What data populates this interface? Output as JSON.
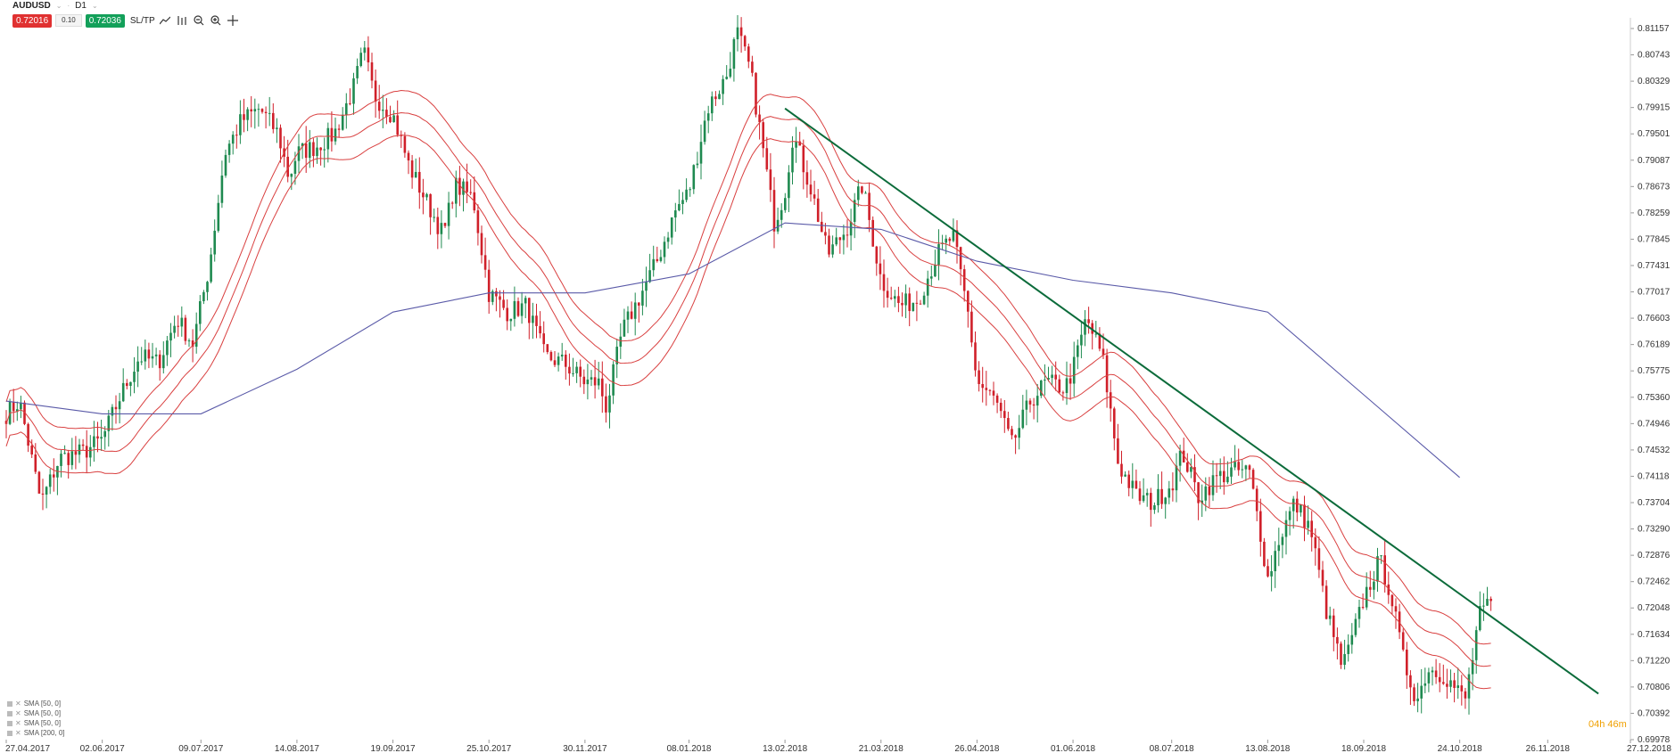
{
  "header": {
    "symbol": "AUDUSD",
    "timeframe": "D1",
    "sell_price": "0.72016",
    "lot": "0.10",
    "buy_price": "0.72036",
    "sltp_label": "SL/TP"
  },
  "legend": {
    "items": [
      "SMA [50, 0]",
      "SMA [50, 0]",
      "SMA [50, 0]",
      "SMA [200, 0]"
    ]
  },
  "countdown": "04h 46m",
  "colors": {
    "up": "#1f8a50",
    "down": "#d0202a",
    "envelope": "#d94040",
    "sma200": "#5a5aa8",
    "trendline": "#0b6b3a"
  },
  "chart_data": {
    "type": "candlestick",
    "y_ticks": [
      "0.81157",
      "0.80743",
      "0.80329",
      "0.79915",
      "0.79501",
      "0.79087",
      "0.78673",
      "0.78259",
      "0.77845",
      "0.77431",
      "0.77017",
      "0.76603",
      "0.76189",
      "0.75775",
      "0.75360",
      "0.74946",
      "0.74532",
      "0.74118",
      "0.73704",
      "0.73290",
      "0.72876",
      "0.72462",
      "0.72048",
      "0.71634",
      "0.71220",
      "0.70806",
      "0.70392",
      "0.69978"
    ],
    "x_ticks": [
      "27.04.2017",
      "02.06.2017",
      "09.07.2017",
      "14.08.2017",
      "19.09.2017",
      "25.10.2017",
      "30.11.2017",
      "08.01.2018",
      "13.02.2018",
      "21.03.2018",
      "26.04.2018",
      "01.06.2018",
      "08.07.2018",
      "13.08.2018",
      "18.09.2018",
      "24.10.2018",
      "26.11.2018",
      "27.12.2018"
    ],
    "ylim": [
      0.69978,
      0.81157
    ],
    "close_path": [
      [
        "27.04.2017",
        0.751
      ],
      [
        "02.05.2017",
        0.753
      ],
      [
        "10.05.2017",
        0.737
      ],
      [
        "17.05.2017",
        0.744
      ],
      [
        "26.05.2017",
        0.745
      ],
      [
        "02.06.2017",
        0.747
      ],
      [
        "09.06.2017",
        0.754
      ],
      [
        "16.06.2017",
        0.76
      ],
      [
        "23.06.2017",
        0.759
      ],
      [
        "30.06.2017",
        0.766
      ],
      [
        "06.07.2017",
        0.762
      ],
      [
        "12.07.2017",
        0.774
      ],
      [
        "18.07.2017",
        0.792
      ],
      [
        "24.07.2017",
        0.797
      ],
      [
        "31.07.2017",
        0.799
      ],
      [
        "07.08.2017",
        0.795
      ],
      [
        "11.08.2017",
        0.788
      ],
      [
        "14.08.2017",
        0.792
      ],
      [
        "21.08.2017",
        0.793
      ],
      [
        "28.08.2017",
        0.795
      ],
      [
        "04.09.2017",
        0.802
      ],
      [
        "08.09.2017",
        0.808
      ],
      [
        "12.09.2017",
        0.801
      ],
      [
        "19.09.2017",
        0.798
      ],
      [
        "25.09.2017",
        0.79
      ],
      [
        "02.10.2017",
        0.784
      ],
      [
        "08.10.2017",
        0.779
      ],
      [
        "12.10.2017",
        0.787
      ],
      [
        "19.10.2017",
        0.785
      ],
      [
        "25.10.2017",
        0.77
      ],
      [
        "01.11.2017",
        0.767
      ],
      [
        "08.11.2017",
        0.768
      ],
      [
        "15.11.2017",
        0.76
      ],
      [
        "22.11.2017",
        0.759
      ],
      [
        "30.11.2017",
        0.756
      ],
      [
        "05.12.2017",
        0.756
      ],
      [
        "08.12.2017",
        0.752
      ],
      [
        "14.12.2017",
        0.764
      ],
      [
        "20.12.2017",
        0.769
      ],
      [
        "27.12.2017",
        0.775
      ],
      [
        "03.01.2018",
        0.783
      ],
      [
        "08.01.2018",
        0.786
      ],
      [
        "15.01.2018",
        0.799
      ],
      [
        "22.01.2018",
        0.804
      ],
      [
        "26.01.2018",
        0.811
      ],
      [
        "31.01.2018",
        0.805
      ],
      [
        "05.02.2018",
        0.792
      ],
      [
        "09.02.2018",
        0.781
      ],
      [
        "13.02.2018",
        0.786
      ],
      [
        "16.02.2018",
        0.795
      ],
      [
        "23.02.2018",
        0.786
      ],
      [
        "01.03.2018",
        0.776
      ],
      [
        "08.03.2018",
        0.78
      ],
      [
        "14.03.2018",
        0.787
      ],
      [
        "21.03.2018",
        0.772
      ],
      [
        "28.03.2018",
        0.768
      ],
      [
        "04.04.2018",
        0.769
      ],
      [
        "11.04.2018",
        0.776
      ],
      [
        "17.04.2018",
        0.779
      ],
      [
        "23.04.2018",
        0.766
      ],
      [
        "26.04.2018",
        0.756
      ],
      [
        "03.05.2018",
        0.753
      ],
      [
        "09.05.2018",
        0.746
      ],
      [
        "16.05.2018",
        0.753
      ],
      [
        "22.05.2018",
        0.756
      ],
      [
        "29.05.2018",
        0.755
      ],
      [
        "01.06.2018",
        0.758
      ],
      [
        "06.06.2018",
        0.766
      ],
      [
        "12.06.2018",
        0.76
      ],
      [
        "18.06.2018",
        0.743
      ],
      [
        "25.06.2018",
        0.738
      ],
      [
        "01.07.2018",
        0.737
      ],
      [
        "08.07.2018",
        0.74
      ],
      [
        "12.07.2018",
        0.745
      ],
      [
        "18.07.2018",
        0.738
      ],
      [
        "25.07.2018",
        0.741
      ],
      [
        "31.07.2018",
        0.742
      ],
      [
        "06.08.2018",
        0.742
      ],
      [
        "10.08.2018",
        0.733
      ],
      [
        "13.08.2018",
        0.725
      ],
      [
        "17.08.2018",
        0.731
      ],
      [
        "23.08.2018",
        0.737
      ],
      [
        "29.08.2018",
        0.733
      ],
      [
        "04.09.2018",
        0.72
      ],
      [
        "10.09.2018",
        0.711
      ],
      [
        "14.09.2018",
        0.716
      ],
      [
        "18.09.2018",
        0.722
      ],
      [
        "24.09.2018",
        0.728
      ],
      [
        "28.09.2018",
        0.723
      ],
      [
        "03.10.2018",
        0.712
      ],
      [
        "08.10.2018",
        0.706
      ],
      [
        "12.10.2018",
        0.711
      ],
      [
        "18.10.2018",
        0.71
      ],
      [
        "22.10.2018",
        0.708
      ],
      [
        "26.10.2018",
        0.706
      ],
      [
        "29.10.2018",
        0.713
      ],
      [
        "31.10.2018",
        0.719
      ],
      [
        "02.11.2018",
        0.72
      ],
      [
        "05.11.2018",
        0.721
      ]
    ],
    "sma200_path": [
      [
        "27.04.2017",
        0.753
      ],
      [
        "02.06.2017",
        0.751
      ],
      [
        "09.07.2017",
        0.751
      ],
      [
        "14.08.2017",
        0.758
      ],
      [
        "19.09.2017",
        0.767
      ],
      [
        "25.10.2017",
        0.77
      ],
      [
        "30.11.2017",
        0.77
      ],
      [
        "08.01.2018",
        0.773
      ],
      [
        "13.02.2018",
        0.781
      ],
      [
        "21.03.2018",
        0.78
      ],
      [
        "26.04.2018",
        0.775
      ],
      [
        "01.06.2018",
        0.772
      ],
      [
        "08.07.2018",
        0.77
      ],
      [
        "13.08.2018",
        0.767
      ],
      [
        "18.09.2018",
        0.754
      ],
      [
        "24.10.2018",
        0.741
      ]
    ],
    "trendline": [
      [
        "13.02.2018",
        0.799
      ],
      [
        "15.12.2018",
        0.707
      ]
    ]
  }
}
